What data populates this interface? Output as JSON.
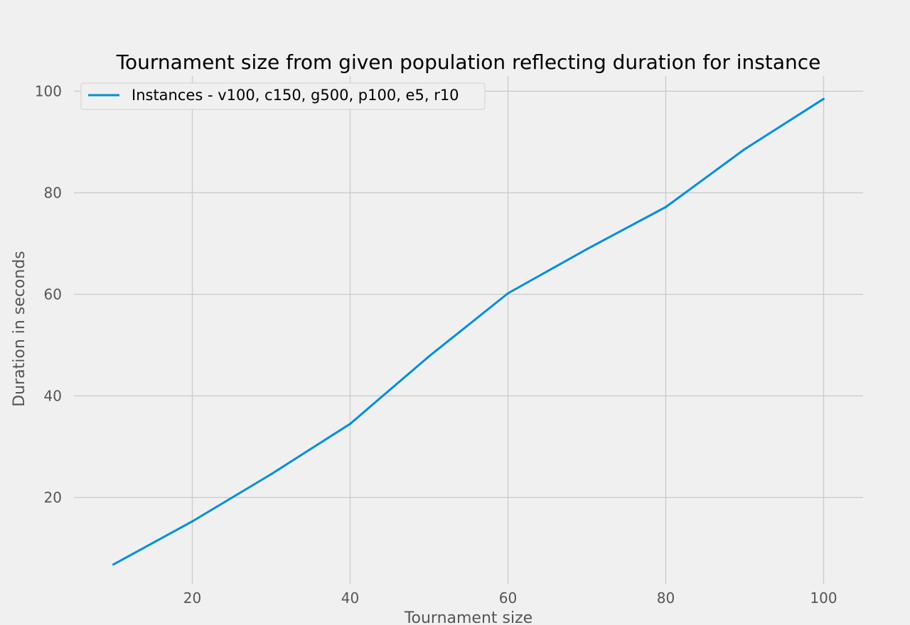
{
  "chart_data": {
    "type": "line",
    "title": "Tournament size from given population reflecting duration for instance",
    "xlabel": "Tournament size",
    "ylabel": "Duration in seconds",
    "xlim": [
      5,
      105
    ],
    "ylim": [
      3,
      103
    ],
    "xticks": [
      20,
      40,
      60,
      80,
      100
    ],
    "yticks": [
      20,
      40,
      60,
      80,
      100
    ],
    "grid": true,
    "legend_position": "top-left",
    "series": [
      {
        "name": "Instances - v100, c150, g500, p100, e5, r10",
        "color": "#008fd5",
        "x": [
          10,
          20,
          30,
          40,
          50,
          60,
          70,
          80,
          90,
          100
        ],
        "y": [
          6.8,
          15.3,
          24.6,
          34.5,
          47.8,
          60.2,
          68.9,
          77.2,
          88.6,
          98.5
        ]
      }
    ]
  }
}
